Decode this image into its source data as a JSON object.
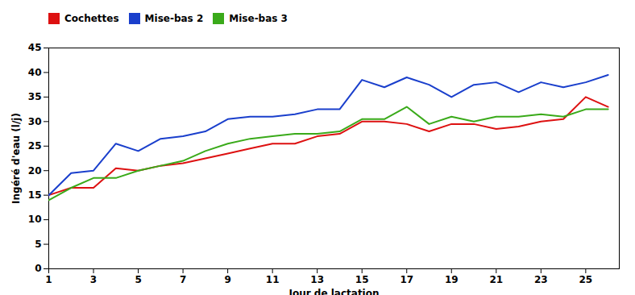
{
  "chart_data": {
    "type": "line",
    "x": [
      1,
      2,
      3,
      4,
      5,
      6,
      7,
      8,
      9,
      10,
      11,
      12,
      13,
      14,
      15,
      16,
      17,
      18,
      19,
      20,
      21,
      22,
      23,
      24,
      25,
      26
    ],
    "series": [
      {
        "name": "Cochettes",
        "color": "#dd1111",
        "values": [
          15.0,
          16.5,
          16.5,
          20.5,
          20.0,
          21.0,
          21.5,
          22.5,
          23.5,
          24.5,
          25.5,
          25.5,
          27.0,
          27.5,
          30.0,
          30.0,
          29.5,
          28.0,
          29.5,
          29.5,
          28.5,
          29.0,
          30.0,
          30.5,
          35.0,
          33.0
        ]
      },
      {
        "name": "Mise-bas 2",
        "color": "#1a3fcc",
        "values": [
          15.0,
          19.5,
          20.0,
          25.5,
          24.0,
          26.5,
          27.0,
          28.0,
          30.5,
          31.0,
          31.0,
          31.5,
          32.5,
          32.5,
          38.5,
          37.0,
          39.0,
          37.5,
          35.0,
          37.5,
          38.0,
          36.0,
          38.0,
          37.0,
          38.0,
          39.5
        ]
      },
      {
        "name": "Mise-bas 3",
        "color": "#3aaa1a",
        "values": [
          14.0,
          16.5,
          18.5,
          18.5,
          20.0,
          21.0,
          22.0,
          24.0,
          25.5,
          26.5,
          27.0,
          27.5,
          27.5,
          28.0,
          30.5,
          30.5,
          33.0,
          29.5,
          31.0,
          30.0,
          31.0,
          31.0,
          31.5,
          31.0,
          32.5,
          32.5
        ]
      }
    ],
    "xlabel": "Jour de lactation",
    "ylabel": "Ingéré d'eau (l/j)",
    "xlim": [
      1,
      26.5
    ],
    "ylim": [
      0,
      45
    ],
    "xticks": [
      1,
      3,
      5,
      7,
      9,
      11,
      13,
      15,
      17,
      19,
      21,
      23,
      25
    ],
    "yticks": [
      0,
      5,
      10,
      15,
      20,
      25,
      30,
      35,
      40,
      45
    ],
    "grid": false,
    "legend": "top"
  }
}
